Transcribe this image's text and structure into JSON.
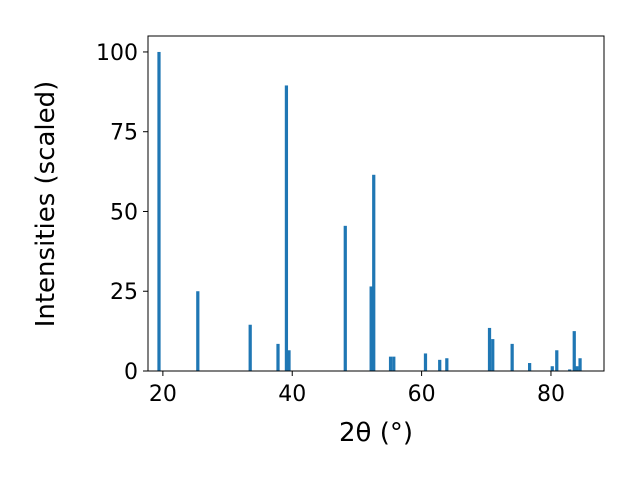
{
  "chart_data": {
    "type": "bar",
    "xlabel": "2θ (°)",
    "ylabel": "Intensities (scaled)",
    "color": "#1f77b4",
    "bar_width": 0.5,
    "x": [
      19.4,
      25.4,
      33.5,
      37.8,
      39.1,
      39.5,
      48.2,
      52.2,
      52.6,
      55.2,
      55.7,
      60.6,
      62.8,
      63.9,
      70.5,
      71.0,
      74.0,
      76.7,
      80.2,
      80.9,
      82.9,
      83.6,
      84.0,
      84.5
    ],
    "values": [
      100,
      25,
      14.5,
      8.5,
      89.5,
      6.5,
      45.5,
      26.5,
      61.5,
      4.5,
      4.5,
      5.5,
      3.5,
      4,
      13.5,
      10,
      8.5,
      2.5,
      1.5,
      6.5,
      0.5,
      12.5,
      1.5,
      4
    ],
    "xlim": [
      17.7,
      88.2
    ],
    "ylim": [
      0,
      105
    ],
    "xticks": [
      20,
      40,
      60,
      80
    ],
    "yticks": [
      0,
      25,
      50,
      75,
      100
    ]
  }
}
